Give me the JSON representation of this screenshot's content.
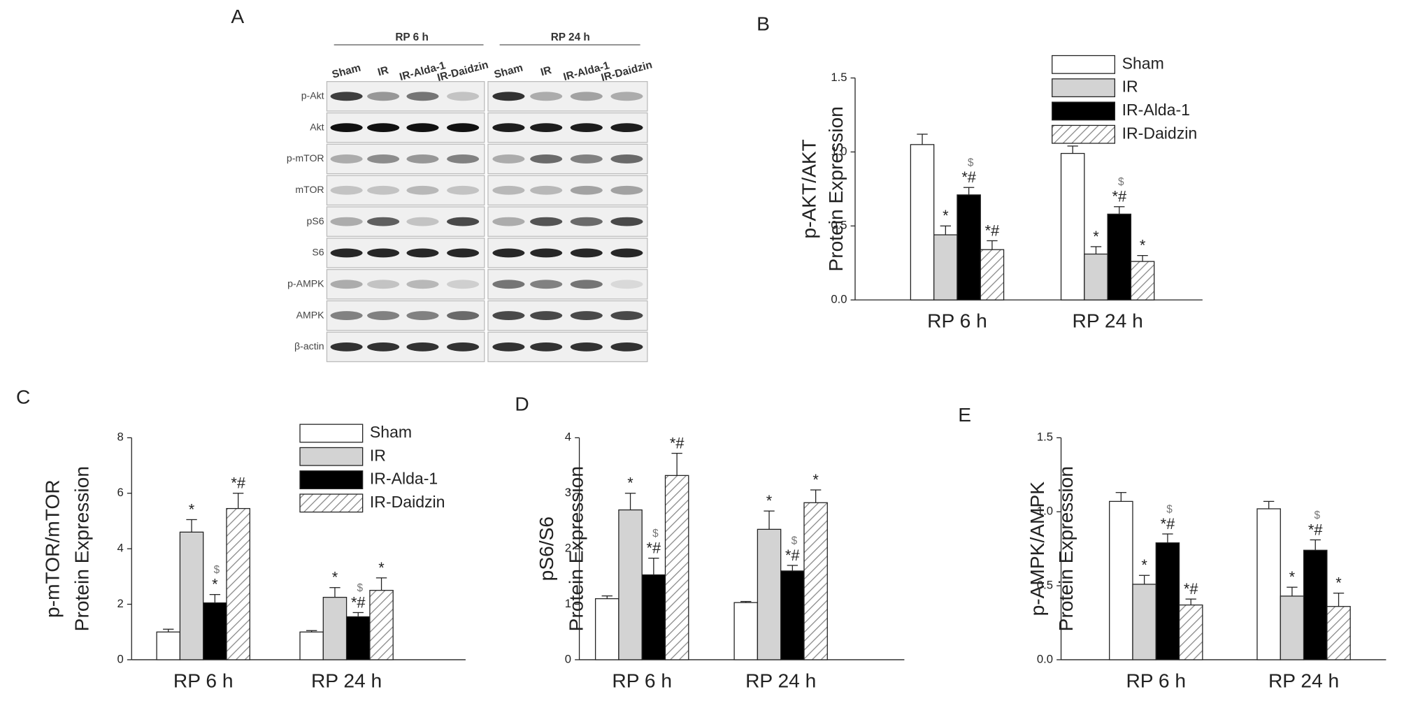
{
  "blot": {
    "label": "A",
    "groups": [
      "RP 6 h",
      "RP 24 h"
    ],
    "lanes": [
      "Sham",
      "IR",
      "IR-Alda-1",
      "IR-Daidzin",
      "Sham",
      "IR",
      "IR-Alda-1",
      "IR-Daidzin"
    ],
    "proteins": [
      "p-Akt",
      "Akt",
      "p-mTOR",
      "mTOR",
      "pS6",
      "S6",
      "p-AMPK",
      "AMPK",
      "β-actin"
    ]
  },
  "chart_data": [
    {
      "type": "bar",
      "panel_label": "B",
      "ylabel": [
        "p-AKT/AKT",
        "Protein Expression"
      ],
      "categories": [
        "RP 6 h",
        "RP 24 h"
      ],
      "ylim": [
        0,
        1.5
      ],
      "yticks": [
        {
          "value": 0,
          "label": "0.0"
        },
        {
          "value": 0.5,
          "label": "0.5"
        },
        {
          "value": 1,
          "label": "1.0"
        },
        {
          "value": 1.5,
          "label": "1.5"
        }
      ],
      "series": [
        {
          "name": "Sham",
          "color": "#ffffff",
          "values": [
            1.05,
            0.99
          ],
          "errors": [
            0.07,
            0.05
          ]
        },
        {
          "name": "IR",
          "color": "#d3d3d3",
          "values": [
            0.44,
            0.31
          ],
          "errors": [
            0.06,
            0.05
          ],
          "annotations": [
            "*",
            "*"
          ]
        },
        {
          "name": "IR-Alda-1",
          "color": "#000000",
          "values": [
            0.71,
            0.58
          ],
          "errors": [
            0.05,
            0.05
          ],
          "annotations": [
            "*#",
            "*#"
          ],
          "annotations_top": [
            "$",
            "$"
          ]
        },
        {
          "name": "IR-Daidzin",
          "color": "#ffffff",
          "pattern": "hatch",
          "values": [
            0.34,
            0.26
          ],
          "errors": [
            0.06,
            0.04
          ],
          "annotations": [
            "*#",
            "*"
          ]
        }
      ]
    },
    {
      "type": "bar",
      "panel_label": "C",
      "ylabel": [
        "p-mTOR/mTOR",
        "Protein Expression"
      ],
      "categories": [
        "RP 6 h",
        "RP 24 h"
      ],
      "ylim": [
        0,
        8
      ],
      "yticks": [
        0,
        2,
        4,
        6,
        8
      ],
      "series": [
        {
          "name": "Sham",
          "color": "#ffffff",
          "values": [
            1.0,
            1.0
          ],
          "errors": [
            0.1,
            0.05
          ]
        },
        {
          "name": "IR",
          "color": "#d3d3d3",
          "values": [
            4.6,
            2.25
          ],
          "errors": [
            0.45,
            0.35
          ],
          "annotations": [
            "*",
            "*"
          ]
        },
        {
          "name": "IR-Alda-1",
          "color": "#000000",
          "values": [
            2.05,
            1.55
          ],
          "errors": [
            0.3,
            0.15
          ],
          "annotations": [
            "*",
            "*#"
          ],
          "annotations_top": [
            "$",
            "$"
          ]
        },
        {
          "name": "IR-Daidzin",
          "color": "#ffffff",
          "pattern": "hatch",
          "values": [
            5.45,
            2.5
          ],
          "errors": [
            0.55,
            0.45
          ],
          "annotations": [
            "*#",
            "*"
          ]
        }
      ]
    },
    {
      "type": "bar",
      "panel_label": "D",
      "ylabel": [
        "pS6/S6",
        "Protein Expression"
      ],
      "categories": [
        "RP 6 h",
        "RP 24 h"
      ],
      "ylim": [
        0,
        4
      ],
      "yticks": [
        0,
        1,
        2,
        3,
        4
      ],
      "series": [
        {
          "name": "Sham",
          "color": "#ffffff",
          "values": [
            1.1,
            1.03
          ],
          "errors": [
            0.05,
            0.02
          ]
        },
        {
          "name": "IR",
          "color": "#d3d3d3",
          "values": [
            2.7,
            2.35
          ],
          "errors": [
            0.3,
            0.33
          ],
          "annotations": [
            "*",
            "*"
          ]
        },
        {
          "name": "IR-Alda-1",
          "color": "#000000",
          "values": [
            1.53,
            1.6
          ],
          "errors": [
            0.3,
            0.1
          ],
          "annotations": [
            "*#",
            "*#"
          ],
          "annotations_top": [
            "$",
            "$"
          ]
        },
        {
          "name": "IR-Daidzin",
          "color": "#ffffff",
          "pattern": "hatch",
          "values": [
            3.32,
            2.83
          ],
          "errors": [
            0.4,
            0.23
          ],
          "annotations": [
            "*#",
            "*"
          ]
        }
      ]
    },
    {
      "type": "bar",
      "panel_label": "E",
      "ylabel": [
        "p-AMPK/AMPK",
        "Protein Expression"
      ],
      "categories": [
        "RP 6 h",
        "RP 24 h"
      ],
      "ylim": [
        0,
        1.5
      ],
      "yticks": [
        {
          "value": 0,
          "label": "0.0"
        },
        {
          "value": 0.5,
          "label": "0.5"
        },
        {
          "value": 1,
          "label": "1.0"
        },
        {
          "value": 1.5,
          "label": "1.5"
        }
      ],
      "series": [
        {
          "name": "Sham",
          "color": "#ffffff",
          "values": [
            1.07,
            1.02
          ],
          "errors": [
            0.06,
            0.05
          ]
        },
        {
          "name": "IR",
          "color": "#d3d3d3",
          "values": [
            0.51,
            0.43
          ],
          "errors": [
            0.06,
            0.06
          ],
          "annotations": [
            "*",
            "*"
          ]
        },
        {
          "name": "IR-Alda-1",
          "color": "#000000",
          "values": [
            0.79,
            0.74
          ],
          "errors": [
            0.06,
            0.07
          ],
          "annotations": [
            "*#",
            "*#"
          ],
          "annotations_top": [
            "$",
            "$"
          ]
        },
        {
          "name": "IR-Daidzin",
          "color": "#ffffff",
          "pattern": "hatch",
          "values": [
            0.37,
            0.36
          ],
          "errors": [
            0.04,
            0.09
          ],
          "annotations": [
            "*#",
            "*"
          ]
        }
      ]
    }
  ]
}
